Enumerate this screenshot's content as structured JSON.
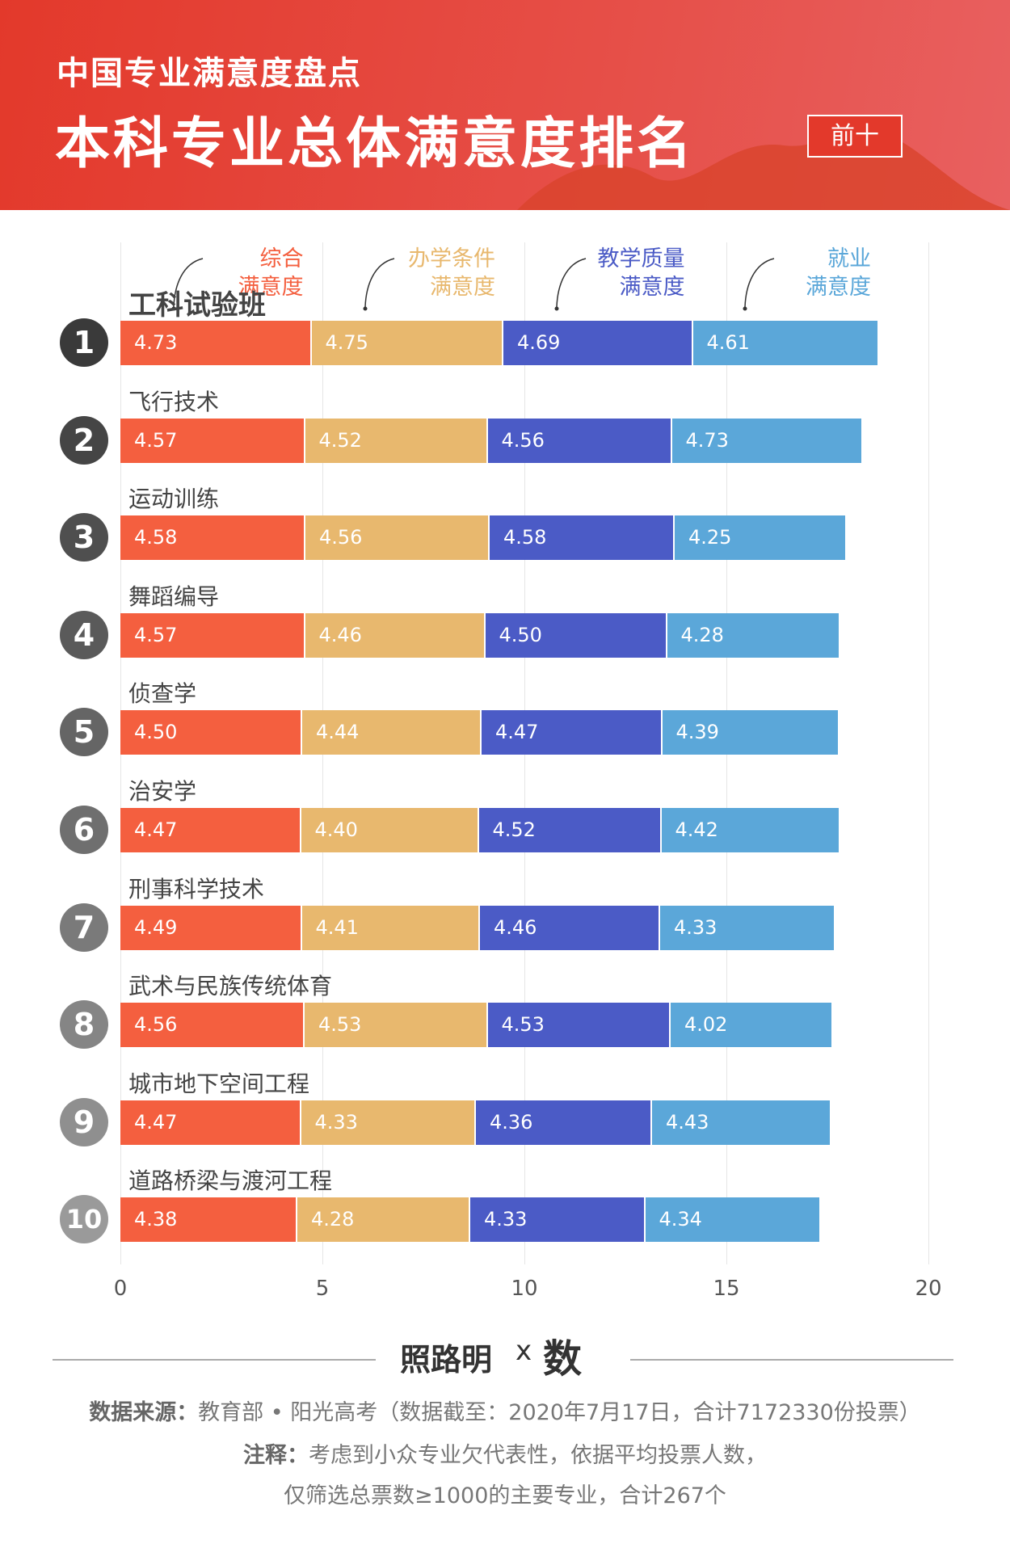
{
  "header": {
    "subtitle": "中国专业满意度盘点",
    "title": "本科专业总体满意度排名",
    "badge": "前十"
  },
  "colors": {
    "overall": "#f45f3f",
    "conditions": "#e8b86e",
    "teaching": "#4b5bc6",
    "employment": "#5ba7d9",
    "rank_dark": "#3a3a3a",
    "rank_light": "#9a9a9a"
  },
  "chart_data": {
    "type": "bar",
    "stacked": true,
    "orientation": "horizontal",
    "categories": [
      "工科试验班",
      "飞行技术",
      "运动训练",
      "舞蹈编导",
      "侦查学",
      "治安学",
      "刑事科学技术",
      "武术与民族传统体育",
      "城市地下空间工程",
      "道路桥梁与渡河工程"
    ],
    "ranks": [
      "1",
      "2",
      "3",
      "4",
      "5",
      "6",
      "7",
      "8",
      "9",
      "10"
    ],
    "series": [
      {
        "name": "综合满意度",
        "name_lines": [
          "综合",
          "满意度"
        ],
        "values": [
          4.73,
          4.57,
          4.58,
          4.57,
          4.5,
          4.47,
          4.49,
          4.56,
          4.47,
          4.38
        ]
      },
      {
        "name": "办学条件满意度",
        "name_lines": [
          "办学条件",
          "满意度"
        ],
        "values": [
          4.75,
          4.52,
          4.56,
          4.46,
          4.44,
          4.4,
          4.41,
          4.53,
          4.33,
          4.28
        ]
      },
      {
        "name": "教学质量满意度",
        "name_lines": [
          "教学质量",
          "满意度"
        ],
        "values": [
          4.69,
          4.56,
          4.58,
          4.5,
          4.47,
          4.52,
          4.46,
          4.53,
          4.36,
          4.33
        ]
      },
      {
        "name": "就业满意度",
        "name_lines": [
          "就业",
          "满意度"
        ],
        "values": [
          4.61,
          4.73,
          4.25,
          4.28,
          4.39,
          4.42,
          4.33,
          4.02,
          4.43,
          4.34
        ]
      }
    ],
    "xlim": [
      0,
      20
    ],
    "xticks": [
      "0",
      "5",
      "10",
      "15",
      "20"
    ],
    "grid": true,
    "legend": "top"
  },
  "footer": {
    "brand_left": "照路明",
    "brand_x": "x",
    "brand_right": "数",
    "source_label": "数据来源：",
    "source_text": "教育部 • 阳光高考（数据截至：2020年7月17日，合计7172330份投票）",
    "note_label": "注释：",
    "note_text1": "考虑到小众专业欠代表性，依据平均投票人数，",
    "note_text2": "仅筛选总票数≥1000的主要专业，合计267个"
  }
}
